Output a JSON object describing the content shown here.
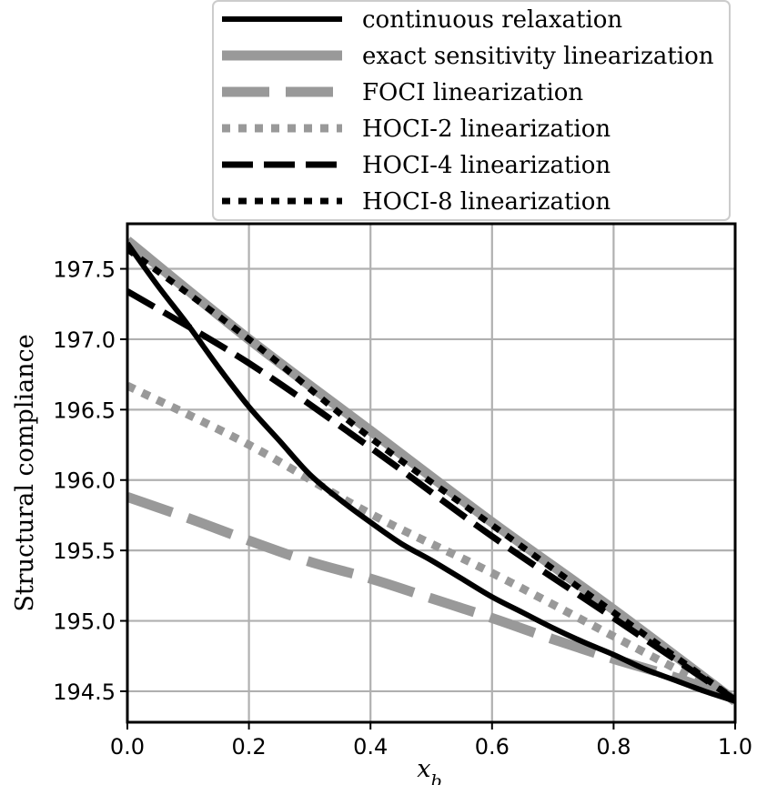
{
  "chart_data": {
    "type": "line",
    "xlabel": "x_b",
    "ylabel": "Structural compliance",
    "xlim": [
      0.0,
      1.0
    ],
    "ylim": [
      194.28,
      197.82
    ],
    "x_ticks": [
      "0.0",
      "0.2",
      "0.4",
      "0.6",
      "0.8",
      "1.0"
    ],
    "y_ticks": [
      "194.5",
      "195.0",
      "195.5",
      "196.0",
      "196.5",
      "197.0",
      "197.5"
    ],
    "grid": true,
    "legend_position": "top-right, above plot",
    "series": [
      {
        "name": "continuous relaxation",
        "color": "#000000",
        "style": "solid",
        "x": [
          0.0,
          0.05,
          0.1,
          0.15,
          0.2,
          0.25,
          0.3,
          0.35,
          0.4,
          0.45,
          0.5,
          0.55,
          0.6,
          0.65,
          0.7,
          0.75,
          0.8,
          0.85,
          0.9,
          0.95,
          1.0
        ],
        "y": [
          197.68,
          197.38,
          197.1,
          196.8,
          196.52,
          196.28,
          196.04,
          195.86,
          195.7,
          195.55,
          195.43,
          195.3,
          195.17,
          195.06,
          194.95,
          194.85,
          194.76,
          194.66,
          194.58,
          194.5,
          194.43
        ]
      },
      {
        "name": "exact sensitivity linearization",
        "color": "#999999",
        "style": "solid",
        "x": [
          0.0,
          0.2,
          0.4,
          0.6,
          0.8,
          1.0
        ],
        "y": [
          197.7,
          197.0,
          196.35,
          195.7,
          195.08,
          194.43
        ]
      },
      {
        "name": "FOCI linearization",
        "color": "#999999",
        "style": "dashed-long",
        "x": [
          0.0,
          0.1,
          0.2,
          0.3,
          0.4,
          0.5,
          0.6,
          0.7,
          0.8,
          0.9,
          1.0
        ],
        "y": [
          195.88,
          195.73,
          195.57,
          195.42,
          195.3,
          195.16,
          195.02,
          194.87,
          194.73,
          194.6,
          194.44
        ]
      },
      {
        "name": "HOCI-2 linearization",
        "color": "#999999",
        "style": "dotted",
        "x": [
          0.0,
          0.2,
          0.4,
          0.6,
          0.8,
          1.0
        ],
        "y": [
          196.67,
          196.25,
          195.76,
          195.34,
          194.89,
          194.44
        ]
      },
      {
        "name": "HOCI-4 linearization",
        "color": "#000000",
        "style": "dashed",
        "x": [
          0.0,
          0.2,
          0.4,
          0.6,
          0.8,
          1.0
        ],
        "y": [
          197.34,
          196.83,
          196.23,
          195.6,
          195.02,
          194.44
        ]
      },
      {
        "name": "HOCI-8 linearization",
        "color": "#000000",
        "style": "dotted",
        "x": [
          0.0,
          0.2,
          0.4,
          0.6,
          0.8,
          1.0
        ],
        "y": [
          197.64,
          197.0,
          196.3,
          195.68,
          195.06,
          194.44
        ]
      }
    ]
  }
}
